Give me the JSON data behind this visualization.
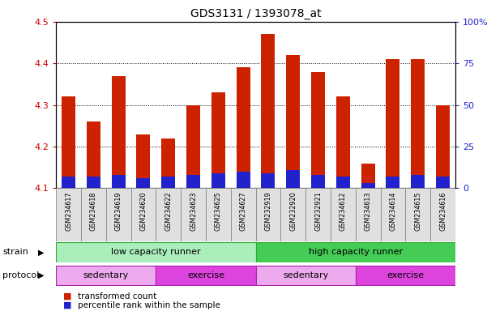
{
  "title": "GDS3131 / 1393078_at",
  "samples": [
    "GSM234617",
    "GSM234618",
    "GSM234619",
    "GSM234620",
    "GSM234622",
    "GSM234623",
    "GSM234625",
    "GSM234627",
    "GSM232919",
    "GSM232920",
    "GSM232921",
    "GSM234612",
    "GSM234613",
    "GSM234614",
    "GSM234615",
    "GSM234616"
  ],
  "transformed_count": [
    4.32,
    4.26,
    4.37,
    4.23,
    4.22,
    4.3,
    4.33,
    4.39,
    4.47,
    4.42,
    4.38,
    4.32,
    4.16,
    4.41,
    4.41,
    4.3
  ],
  "percentile_rank": [
    7,
    7,
    8,
    6,
    7,
    8,
    9,
    10,
    9,
    11,
    8,
    7,
    3,
    7,
    8,
    7
  ],
  "ylim": [
    4.1,
    4.5
  ],
  "right_ylim": [
    0,
    100
  ],
  "right_yticks": [
    0,
    25,
    50,
    75,
    100
  ],
  "right_yticklabels": [
    "0",
    "25",
    "50",
    "75",
    "100%"
  ],
  "left_yticks": [
    4.1,
    4.2,
    4.3,
    4.4,
    4.5
  ],
  "bar_color_red": "#CC2200",
  "bar_color_blue": "#2222CC",
  "bar_width": 0.55,
  "strain_labels": [
    {
      "label": "low capacity runner",
      "start": 0,
      "end": 8,
      "color": "#AAEEBB"
    },
    {
      "label": "high capacity runner",
      "start": 8,
      "end": 16,
      "color": "#44CC55"
    }
  ],
  "protocol_labels": [
    {
      "label": "sedentary",
      "start": 0,
      "end": 4,
      "color": "#EEAAEE"
    },
    {
      "label": "exercise",
      "start": 4,
      "end": 8,
      "color": "#DD44DD"
    },
    {
      "label": "sedentary",
      "start": 8,
      "end": 12,
      "color": "#EEAAEE"
    },
    {
      "label": "exercise",
      "start": 12,
      "end": 16,
      "color": "#DD44DD"
    }
  ],
  "strain_row_label": "strain",
  "protocol_row_label": "protocol",
  "legend_items": [
    {
      "label": "transformed count",
      "color": "#CC2200"
    },
    {
      "label": "percentile rank within the sample",
      "color": "#2222CC"
    }
  ],
  "axis_label_color_left": "#CC0000",
  "axis_label_color_right": "#2222CC",
  "background_color": "#FFFFFF"
}
